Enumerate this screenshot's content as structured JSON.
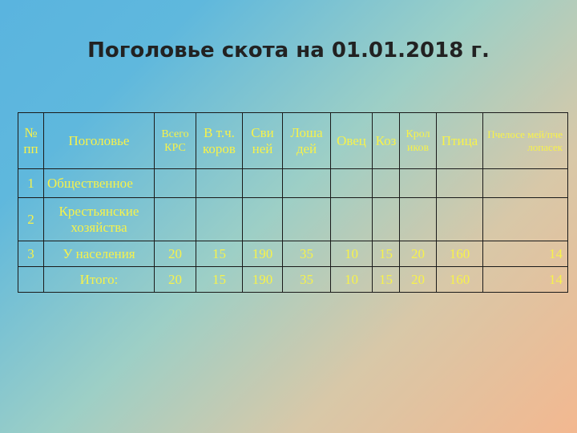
{
  "title": "Поголовье скота на 01.01.2018 г.",
  "columns": [
    "№ пп",
    "Поголовье",
    "Всего КРС",
    "В т.ч. коров",
    "Сви ней",
    "Лоша дей",
    "Овец",
    "Коз",
    "Крол иков",
    "Птица",
    "Пчелосе мей/пче лопасек"
  ],
  "rows": [
    {
      "num": "1",
      "name": "Общественное",
      "values": [
        "",
        "",
        "",
        "",
        "",
        "",
        "",
        "",
        ""
      ]
    },
    {
      "num": "2",
      "name": "Крестьянские хозяйства",
      "values": [
        "",
        "",
        "",
        "",
        "",
        "",
        "",
        "",
        ""
      ]
    },
    {
      "num": "3",
      "name": "У населения",
      "values": [
        "20",
        "15",
        "190",
        "35",
        "10",
        "15",
        "20",
        "160",
        "14"
      ]
    },
    {
      "num": "",
      "name": "Итого:",
      "values": [
        "20",
        "15",
        "190",
        "35",
        "10",
        "15",
        "20",
        "160",
        "14"
      ]
    }
  ],
  "colors": {
    "text": "#f7f24a",
    "title": "#222222",
    "border": "#1a1a1a"
  }
}
